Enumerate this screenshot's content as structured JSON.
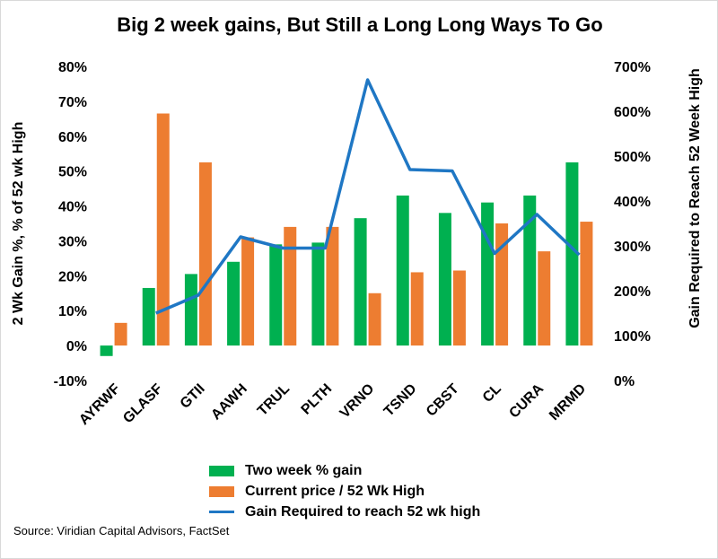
{
  "chart_data": {
    "type": "bar",
    "title": "Big 2 week gains, But Still a Long Long Ways To Go",
    "categories": [
      "AYRWF",
      "GLASF",
      "GTII",
      "AAWH",
      "TRUL",
      "PLTH",
      "VRNO",
      "TSND",
      "CBST",
      "CL",
      "CURA",
      "MRMD"
    ],
    "ylabel": "2 Wk Gain %, % of 52 wk High",
    "y2label": "Gain Required to Reach 52 Week High",
    "ylim": [
      -10,
      80
    ],
    "y2lim": [
      0,
      700
    ],
    "yticks": [
      "-10%",
      "0%",
      "10%",
      "20%",
      "30%",
      "40%",
      "50%",
      "60%",
      "70%",
      "80%"
    ],
    "y2ticks": [
      "0%",
      "100%",
      "200%",
      "300%",
      "400%",
      "500%",
      "600%",
      "700%"
    ],
    "series": [
      {
        "name": "Two week % gain",
        "type": "bar",
        "axis": "left",
        "color": "#00b050",
        "values": [
          -3,
          16.5,
          20.5,
          24,
          29,
          29.5,
          36.5,
          43,
          38,
          41,
          43,
          52.5
        ]
      },
      {
        "name": "Current price / 52 Wk High",
        "type": "bar",
        "axis": "left",
        "color": "#ed7d31",
        "values": [
          6.5,
          66.5,
          52.5,
          31,
          34,
          34,
          15,
          21,
          21.5,
          35,
          27,
          35.5
        ]
      },
      {
        "name": "Gain Required to reach 52 wk high",
        "type": "line",
        "axis": "right",
        "color": "#1f77c4",
        "values": [
          null,
          150,
          190,
          320,
          295,
          295,
          670,
          470,
          467,
          283,
          370,
          280
        ]
      }
    ],
    "legend_position": "bottom",
    "grid": false
  },
  "source": "Source: Viridian Capital Advisors, FactSet"
}
